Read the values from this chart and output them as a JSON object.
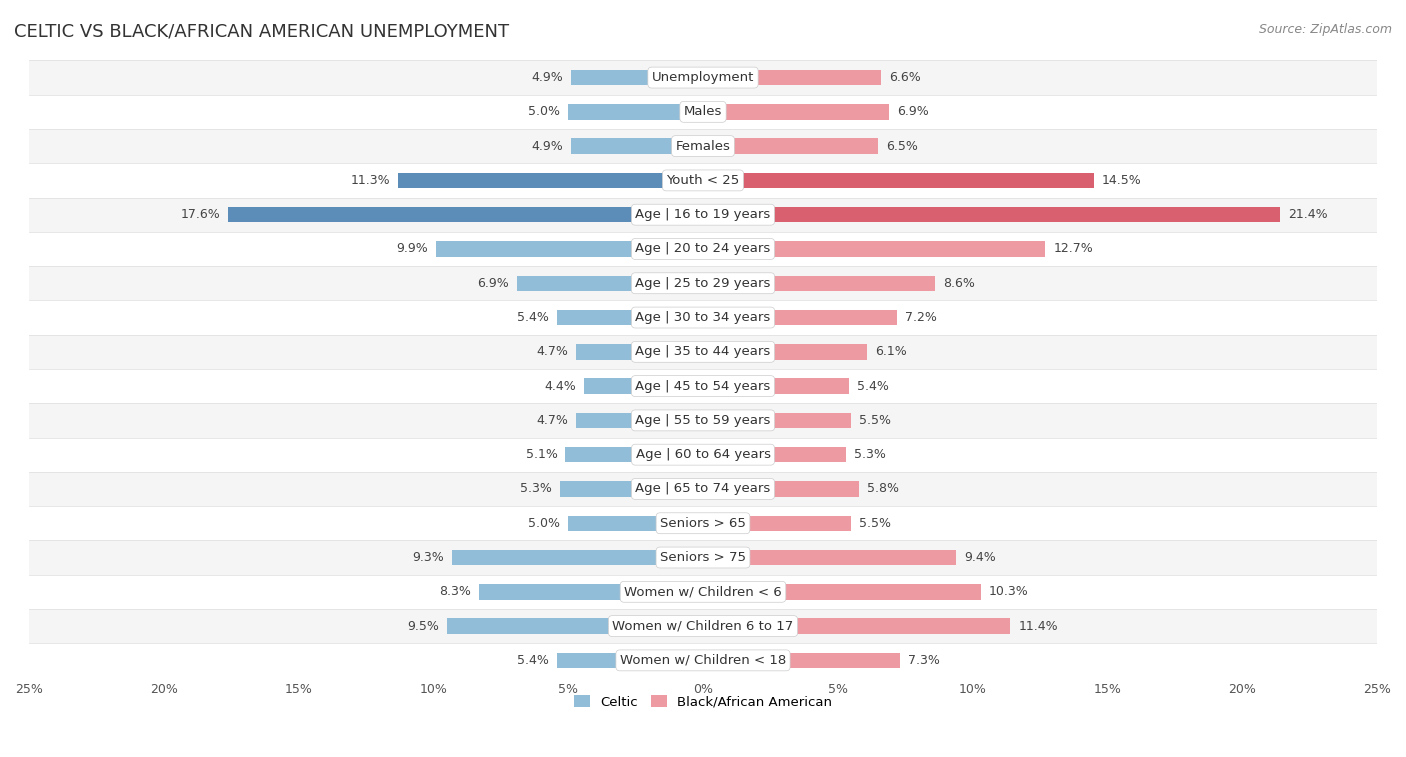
{
  "title": "CELTIC VS BLACK/AFRICAN AMERICAN UNEMPLOYMENT",
  "source": "Source: ZipAtlas.com",
  "categories": [
    "Unemployment",
    "Males",
    "Females",
    "Youth < 25",
    "Age | 16 to 19 years",
    "Age | 20 to 24 years",
    "Age | 25 to 29 years",
    "Age | 30 to 34 years",
    "Age | 35 to 44 years",
    "Age | 45 to 54 years",
    "Age | 55 to 59 years",
    "Age | 60 to 64 years",
    "Age | 65 to 74 years",
    "Seniors > 65",
    "Seniors > 75",
    "Women w/ Children < 6",
    "Women w/ Children 6 to 17",
    "Women w/ Children < 18"
  ],
  "celtic_values": [
    4.9,
    5.0,
    4.9,
    11.3,
    17.6,
    9.9,
    6.9,
    5.4,
    4.7,
    4.4,
    4.7,
    5.1,
    5.3,
    5.0,
    9.3,
    8.3,
    9.5,
    5.4
  ],
  "black_values": [
    6.6,
    6.9,
    6.5,
    14.5,
    21.4,
    12.7,
    8.6,
    7.2,
    6.1,
    5.4,
    5.5,
    5.3,
    5.8,
    5.5,
    9.4,
    10.3,
    11.4,
    7.3
  ],
  "celtic_color": "#92BDD8",
  "black_color": "#EE9AA3",
  "highlight_celtic_color": "#5B8DB8",
  "highlight_black_color": "#D9606E",
  "highlight_rows": [
    3,
    4
  ],
  "bg_color": "#FFFFFF",
  "row_even_color": "#F5F5F5",
  "row_odd_color": "#FFFFFF",
  "separator_color": "#DDDDDD",
  "axis_max": 25.0,
  "bar_height": 0.45,
  "title_fontsize": 13,
  "label_fontsize": 9.5,
  "value_fontsize": 9,
  "tick_fontsize": 9,
  "source_fontsize": 9
}
